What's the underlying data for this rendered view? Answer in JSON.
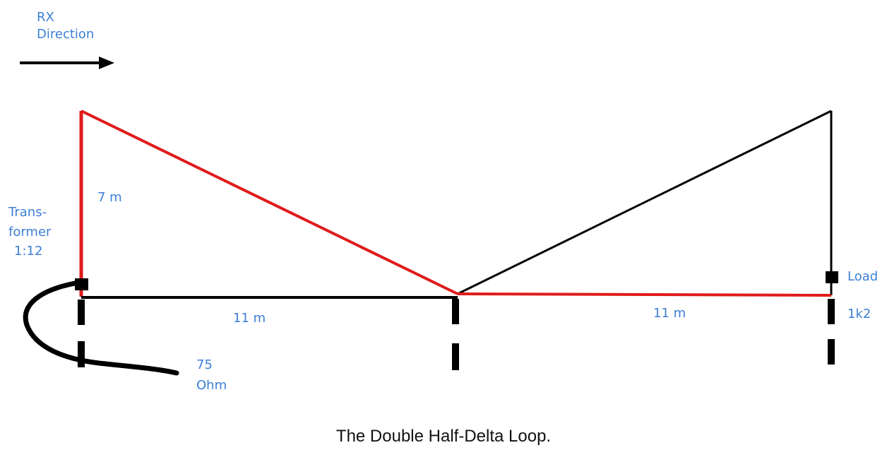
{
  "labels": {
    "rx": "RX",
    "direction": "Direction",
    "height": "7 m",
    "transformer_1": "Trans-",
    "transformer_2": "former",
    "transformer_ratio": "1:12",
    "span_left": "11 m",
    "span_right": "11 m",
    "coax_1": "75",
    "coax_2": "Ohm",
    "load": "Load",
    "load_value": "1k2"
  },
  "caption": "The Double Half-Delta Loop.",
  "colors": {
    "label_text": "#3d7fd6",
    "red_wire": "#e01b1b",
    "black_wire": "#000000"
  }
}
